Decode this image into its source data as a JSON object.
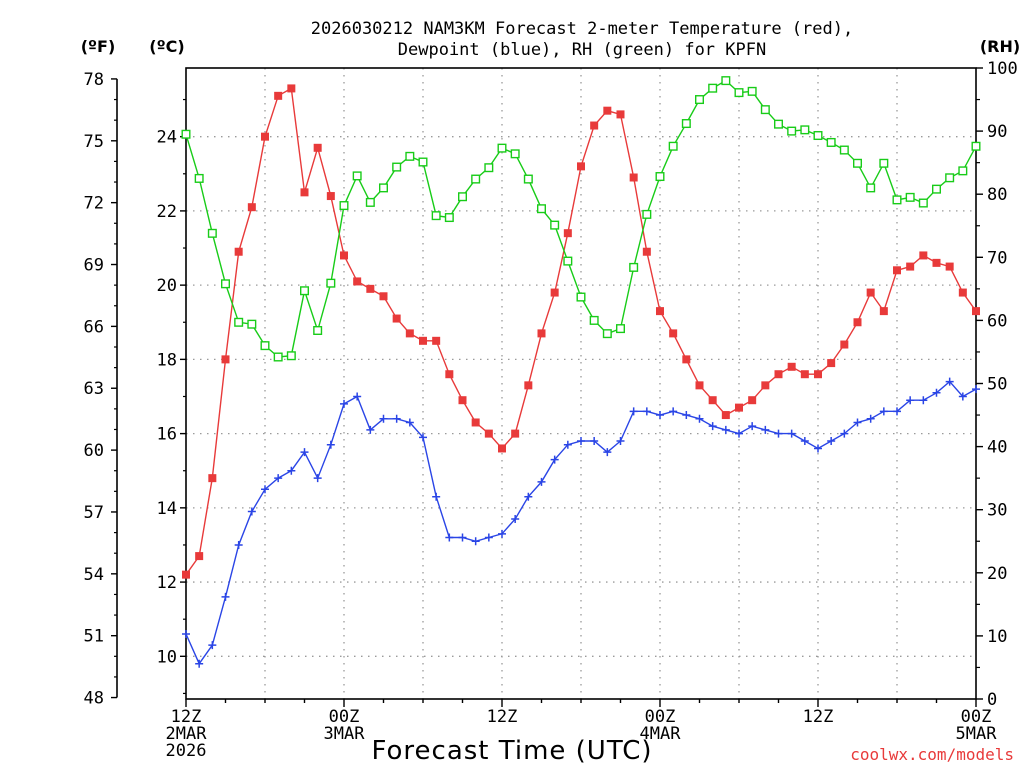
{
  "chart_data": {
    "type": "line",
    "title_line1": "2026030212 NAM3KM Forecast 2-meter Temperature (red),",
    "title_line2": "Dewpoint (blue), RH (green) for KPFN",
    "xlabel": "Forecast Time (UTC)",
    "credit": "coolwx.com/models",
    "units": {
      "fahrenheit": "(ºF)",
      "celsius": "(ºC)",
      "rh": "(RH)"
    },
    "x_range_hours": [
      0,
      60
    ],
    "celsius_range": [
      8.85,
      25.85
    ],
    "rh_range": [
      0,
      100
    ],
    "fahrenheit_ticks": [
      "48",
      "51",
      "54",
      "57",
      "60",
      "63",
      "66",
      "69",
      "72",
      "75",
      "78"
    ],
    "celsius_ticks": [
      "10",
      "12",
      "14",
      "16",
      "18",
      "20",
      "22",
      "24"
    ],
    "rh_ticks": [
      "0",
      "10",
      "20",
      "30",
      "40",
      "50",
      "60",
      "70",
      "80",
      "90",
      "100"
    ],
    "x_ticks": [
      {
        "hour": 0,
        "time": "12Z",
        "date": "2MAR",
        "year": "2026"
      },
      {
        "hour": 12,
        "time": "00Z",
        "date": "3MAR",
        "year": ""
      },
      {
        "hour": 24,
        "time": "12Z",
        "date": "",
        "year": ""
      },
      {
        "hour": 36,
        "time": "00Z",
        "date": "4MAR",
        "year": ""
      },
      {
        "hour": 48,
        "time": "12Z",
        "date": "",
        "year": ""
      },
      {
        "hour": 60,
        "time": "00Z",
        "date": "5MAR",
        "year": ""
      }
    ],
    "series": [
      {
        "name": "2-meter Temperature",
        "unit": "C",
        "color": "#e83a3a",
        "marker": "filled-square",
        "values": [
          12.2,
          12.7,
          14.8,
          18.0,
          20.9,
          22.1,
          24.0,
          25.1,
          25.3,
          22.5,
          23.7,
          22.4,
          20.8,
          20.1,
          19.9,
          19.7,
          19.1,
          18.7,
          18.5,
          18.5,
          17.6,
          16.9,
          16.3,
          16.0,
          15.6,
          16.0,
          17.3,
          18.7,
          19.8,
          21.4,
          23.2,
          24.3,
          24.7,
          24.6,
          22.9,
          20.9,
          19.3,
          18.7,
          18.0,
          17.3,
          16.9,
          16.5,
          16.7,
          16.9,
          17.3,
          17.6,
          17.8,
          17.6,
          17.6,
          17.9,
          18.4,
          19.0,
          19.8,
          19.3,
          20.4,
          20.5,
          20.8,
          20.6,
          20.5,
          19.8,
          19.3
        ]
      },
      {
        "name": "Dewpoint",
        "unit": "C",
        "color": "#2a45e6",
        "marker": "plus",
        "values": [
          10.6,
          9.8,
          10.3,
          11.6,
          13.0,
          13.9,
          14.5,
          14.8,
          15.0,
          15.5,
          14.8,
          15.7,
          16.8,
          17.0,
          16.1,
          16.4,
          16.4,
          16.3,
          15.9,
          14.3,
          13.2,
          13.2,
          13.1,
          13.2,
          13.3,
          13.7,
          14.3,
          14.7,
          15.3,
          15.7,
          15.8,
          15.8,
          15.5,
          15.8,
          16.6,
          16.6,
          16.5,
          16.6,
          16.5,
          16.4,
          16.2,
          16.1,
          16.0,
          16.2,
          16.1,
          16.0,
          16.0,
          15.8,
          15.6,
          15.8,
          16.0,
          16.3,
          16.4,
          16.6,
          16.6,
          16.9,
          16.9,
          17.1,
          17.4,
          17.0,
          17.2
        ]
      },
      {
        "name": "RH",
        "unit": "%",
        "color": "#18cc18",
        "marker": "open-square",
        "values": [
          89.5,
          82.5,
          73.8,
          65.8,
          59.7,
          59.4,
          56.0,
          54.2,
          54.4,
          64.7,
          58.4,
          65.9,
          78.2,
          82.9,
          78.7,
          81.0,
          84.3,
          86.0,
          85.1,
          76.6,
          76.3,
          79.6,
          82.4,
          84.2,
          87.3,
          86.4,
          82.4,
          77.7,
          75.1,
          69.4,
          63.7,
          60.0,
          57.9,
          58.7,
          68.4,
          76.8,
          82.8,
          87.6,
          91.2,
          95.0,
          96.8,
          98.0,
          96.1,
          96.3,
          93.4,
          91.1,
          90.0,
          90.2,
          89.3,
          88.2,
          87.0,
          84.9,
          81.0,
          84.9,
          79.1,
          79.5,
          78.6,
          80.8,
          82.6,
          83.7,
          87.6
        ]
      }
    ]
  }
}
